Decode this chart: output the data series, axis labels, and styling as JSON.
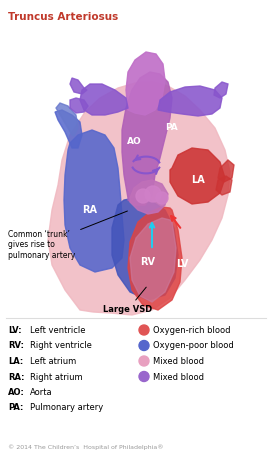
{
  "title": "Truncus Arteriosus",
  "title_color": "#c0392b",
  "title_fontsize": 7.5,
  "bg_color": "#ffffff",
  "legend_items_left": [
    [
      "LV",
      "Left ventricle"
    ],
    [
      "RV",
      "Right ventricle"
    ],
    [
      "LA",
      "Left atrium"
    ],
    [
      "RA",
      "Right atrium"
    ],
    [
      "AO",
      "Aorta"
    ],
    [
      "PA",
      "Pulmonary artery"
    ]
  ],
  "legend_items_right": [
    [
      "#e05555",
      "Oxygen-rich blood"
    ],
    [
      "#5566cc",
      "Oxygen-poor blood"
    ],
    [
      "#e8a0c0",
      "Mixed blood"
    ],
    [
      "#9966cc",
      "Mixed blood"
    ]
  ],
  "annotation1": "Common ‘trunk’\ngives rise to\npulmonary artery",
  "annotation2": "Large VSD",
  "copyright": "© 2014 The Children’s  Hospital of Philadelphia®",
  "heart": {
    "pericardium_color": "#f0b8c0",
    "ra_color": "#5566cc",
    "rv_color": "#4455bb",
    "la_color": "#cc3333",
    "lv_color": "#dd4444",
    "truncus_color": "#9966cc",
    "ao_color": "#cc66bb",
    "pa_color": "#8855cc",
    "mixed_valve_color": "#bb66aa",
    "lv_inner_color": "#cc7799"
  }
}
